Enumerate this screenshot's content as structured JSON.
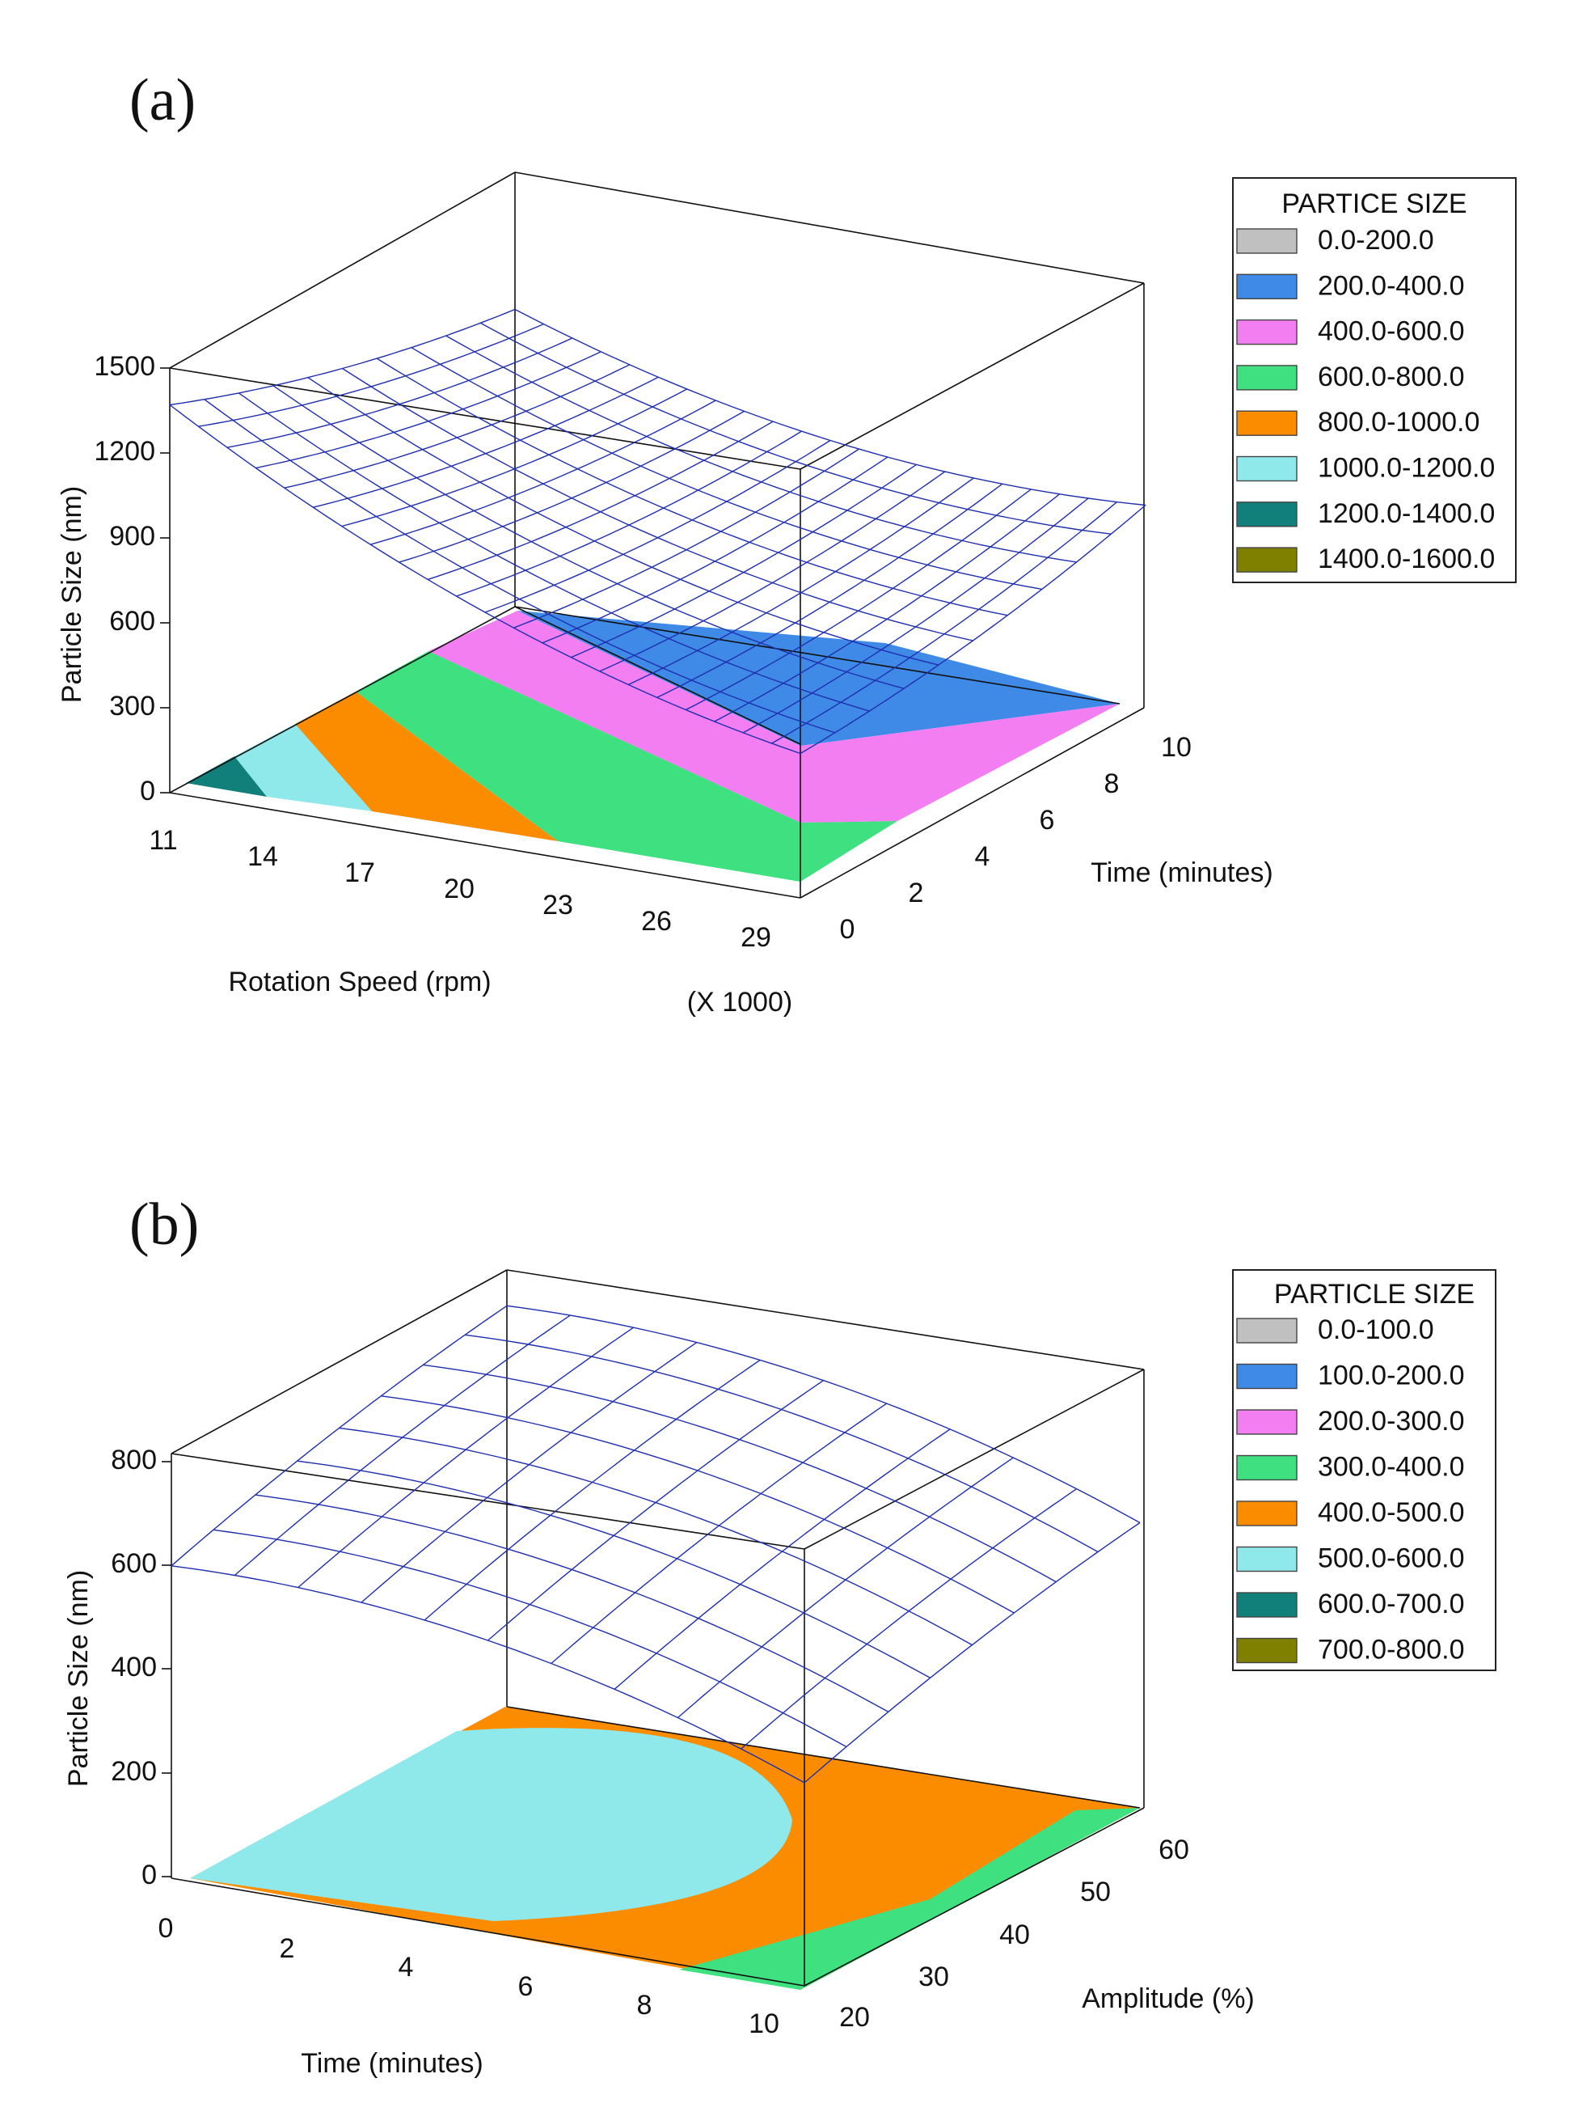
{
  "chart_data": [
    {
      "panel_label": "(a)",
      "type": "surface3d",
      "zlabel": "Particle Size (nm)",
      "xlabel": "Rotation Speed (rpm)",
      "x_multiplier": "(X 1000)",
      "ylabel": "Time (minutes)",
      "x_ticks": [
        "11",
        "14",
        "17",
        "20",
        "23",
        "26",
        "29"
      ],
      "y_ticks": [
        "0",
        "2",
        "4",
        "6",
        "8",
        "10"
      ],
      "z_ticks": [
        "0",
        "300",
        "600",
        "900",
        "1200",
        "1500"
      ],
      "xlim": [
        11,
        29
      ],
      "ylim": [
        0,
        10
      ],
      "zlim": [
        0,
        1500
      ],
      "surface_corners": {
        "x11_t0": 1370,
        "x29_t0": 510,
        "x11_t10": 1050,
        "x29_t10": 730,
        "minimum_approx": 480
      },
      "legend": {
        "title": "PARTICE SIZE",
        "entries": [
          {
            "label": "0.0-200.0",
            "color": "#c0c0c0"
          },
          {
            "label": "200.0-400.0",
            "color": "#3f8ae6"
          },
          {
            "label": "400.0-600.0",
            "color": "#f27ef2"
          },
          {
            "label": "600.0-800.0",
            "color": "#3ee07f"
          },
          {
            "label": "800.0-1000.0",
            "color": "#fb8c00"
          },
          {
            "label": "1000.0-1200.0",
            "color": "#8fe9ea"
          },
          {
            "label": "1200.0-1400.0",
            "color": "#12807a"
          },
          {
            "label": "1400.0-1600.0",
            "color": "#808000"
          }
        ]
      }
    },
    {
      "panel_label": "(b)",
      "type": "surface3d",
      "zlabel": "Particle Size (nm)",
      "xlabel": "Time (minutes)",
      "ylabel": "Amplitude (%)",
      "x_ticks": [
        "0",
        "2",
        "4",
        "6",
        "8",
        "10"
      ],
      "y_ticks": [
        "20",
        "30",
        "40",
        "50",
        "60"
      ],
      "z_ticks": [
        "0",
        "200",
        "400",
        "600",
        "800"
      ],
      "xlim": [
        0,
        10
      ],
      "ylim": [
        20,
        60
      ],
      "zlim": [
        0,
        800
      ],
      "surface_corners": {
        "t0_a20": 600,
        "t10_a20": 390,
        "t0_a60": 770,
        "t10_a60": 560,
        "maximum_approx": 780
      },
      "legend": {
        "title": "PARTICLE SIZE",
        "entries": [
          {
            "label": "0.0-100.0",
            "color": "#c0c0c0"
          },
          {
            "label": "100.0-200.0",
            "color": "#3f8ae6"
          },
          {
            "label": "200.0-300.0",
            "color": "#f27ef2"
          },
          {
            "label": "300.0-400.0",
            "color": "#3ee07f"
          },
          {
            "label": "400.0-500.0",
            "color": "#fb8c00"
          },
          {
            "label": "500.0-600.0",
            "color": "#8fe9ea"
          },
          {
            "label": "600.0-700.0",
            "color": "#12807a"
          },
          {
            "label": "700.0-800.0",
            "color": "#808000"
          }
        ]
      }
    }
  ]
}
